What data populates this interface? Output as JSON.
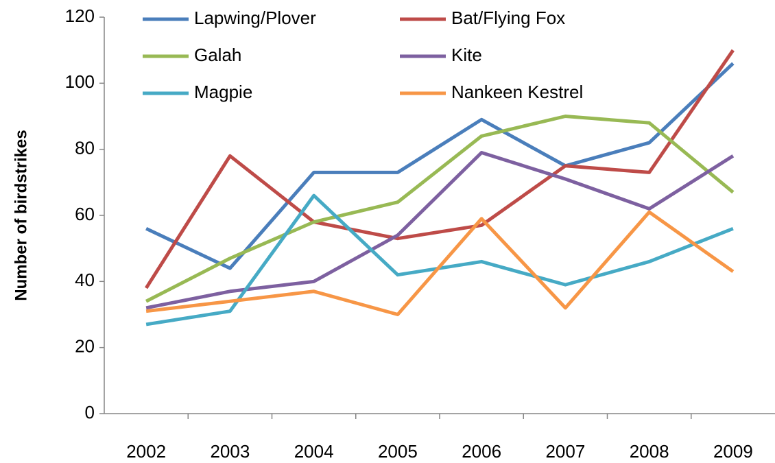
{
  "chart_data": {
    "type": "line",
    "y_label": "Number of birdstrikes",
    "categories": [
      "2002",
      "2003",
      "2004",
      "2005",
      "2006",
      "2007",
      "2008",
      "2009"
    ],
    "series": [
      {
        "name": "Lapwing/Plover",
        "color": "#4a7ebb",
        "values": [
          56,
          44,
          73,
          73,
          89,
          75,
          82,
          106
        ]
      },
      {
        "name": "Bat/Flying Fox",
        "color": "#be4b48",
        "values": [
          38,
          78,
          58,
          53,
          57,
          75,
          73,
          110
        ]
      },
      {
        "name": "Galah",
        "color": "#98b954",
        "values": [
          34,
          47,
          58,
          64,
          84,
          90,
          88,
          67
        ]
      },
      {
        "name": "Kite",
        "color": "#7d60a0",
        "values": [
          32,
          37,
          40,
          54,
          79,
          71,
          62,
          78
        ]
      },
      {
        "name": "Magpie",
        "color": "#46aac5",
        "values": [
          27,
          31,
          66,
          42,
          46,
          39,
          46,
          56
        ]
      },
      {
        "name": "Nankeen Kestrel",
        "color": "#f79646",
        "values": [
          31,
          34,
          37,
          30,
          59,
          32,
          61,
          43
        ]
      }
    ],
    "ylim": [
      0,
      120
    ],
    "yticks": [
      0,
      20,
      40,
      60,
      80,
      100,
      120
    ],
    "grid": false,
    "legend": "top"
  }
}
